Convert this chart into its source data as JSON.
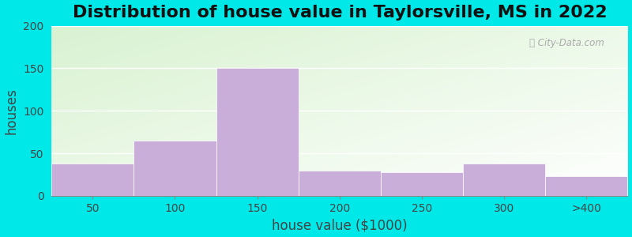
{
  "title": "Distribution of house value in Taylorsville, MS in 2022",
  "xlabel": "house value ($1000)",
  "ylabel": "houses",
  "bar_labels": [
    "50",
    "100",
    "150",
    "200",
    "250",
    "300",
    ">400"
  ],
  "bar_left_edges": [
    0,
    1,
    2,
    3,
    4,
    5,
    6
  ],
  "bar_values": [
    38,
    65,
    150,
    30,
    28,
    38,
    23
  ],
  "bar_color": "#c8aed8",
  "bar_edgecolor": "#c8aed8",
  "ylim": [
    0,
    200
  ],
  "yticks": [
    0,
    50,
    100,
    150,
    200
  ],
  "background_outer": "#00e8e8",
  "title_fontsize": 16,
  "axis_fontsize": 12,
  "tick_fontsize": 10,
  "bar_width": 1.0
}
